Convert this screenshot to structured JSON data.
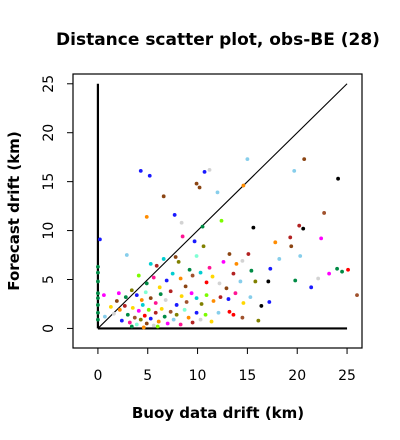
{
  "chart_data": {
    "type": "scatter",
    "title": "Distance scatter plot, obs-BE (28)",
    "xlabel": "Buoy data drift (km)",
    "ylabel": "Forecast drift (km)",
    "xlim": [
      -2.5,
      26.5
    ],
    "ylim": [
      -2,
      26
    ],
    "xticks": [
      0,
      5,
      10,
      15,
      20,
      25
    ],
    "yticks": [
      0,
      5,
      10,
      15,
      20,
      25
    ],
    "grid": false,
    "reference_lines": [
      {
        "type": "identity",
        "from": [
          0,
          0
        ],
        "to": [
          25,
          25
        ],
        "color": "#000000"
      },
      {
        "type": "vertical",
        "from": [
          0,
          0
        ],
        "to": [
          0,
          25
        ],
        "color": "#000000"
      },
      {
        "type": "horizontal",
        "from": [
          0,
          0
        ],
        "to": [
          25,
          0
        ],
        "color": "#000000"
      }
    ],
    "points": [
      {
        "x": 4.3,
        "y": 16.1,
        "color": "#1a1aff"
      },
      {
        "x": 5.2,
        "y": 15.6,
        "color": "#1a1aff"
      },
      {
        "x": 6.6,
        "y": 13.5,
        "color": "#8b4513"
      },
      {
        "x": 9.9,
        "y": 14.8,
        "color": "#8b4513"
      },
      {
        "x": 10.2,
        "y": 14.4,
        "color": "#8b4513"
      },
      {
        "x": 10.7,
        "y": 16.0,
        "color": "#1a1aff"
      },
      {
        "x": 11.2,
        "y": 16.2,
        "color": "#d3d3d3"
      },
      {
        "x": 14.6,
        "y": 14.6,
        "color": "#ff8c00"
      },
      {
        "x": 15.0,
        "y": 17.3,
        "color": "#87ceeb"
      },
      {
        "x": 19.7,
        "y": 16.1,
        "color": "#87ceeb"
      },
      {
        "x": 20.7,
        "y": 17.3,
        "color": "#8b4513"
      },
      {
        "x": 24.1,
        "y": 15.3,
        "color": "#000000"
      },
      {
        "x": 12.0,
        "y": 13.9,
        "color": "#87ceeb"
      },
      {
        "x": 4.9,
        "y": 11.4,
        "color": "#ff8c00"
      },
      {
        "x": 7.7,
        "y": 11.6,
        "color": "#1a1aff"
      },
      {
        "x": 8.4,
        "y": 10.8,
        "color": "#d3d3d3"
      },
      {
        "x": 10.5,
        "y": 10.4,
        "color": "#008b45"
      },
      {
        "x": 12.4,
        "y": 11.0,
        "color": "#7cfc00"
      },
      {
        "x": 15.6,
        "y": 10.3,
        "color": "#000000"
      },
      {
        "x": 20.2,
        "y": 10.5,
        "color": "#b22222"
      },
      {
        "x": 20.6,
        "y": 10.2,
        "color": "#000000"
      },
      {
        "x": 22.7,
        "y": 11.8,
        "color": "#a0522d"
      },
      {
        "x": 0.2,
        "y": 9.1,
        "color": "#1a1aff"
      },
      {
        "x": 8.5,
        "y": 9.4,
        "color": "#ff1493"
      },
      {
        "x": 9.7,
        "y": 8.9,
        "color": "#1a1aff"
      },
      {
        "x": 10.6,
        "y": 8.4,
        "color": "#808000"
      },
      {
        "x": 17.8,
        "y": 8.8,
        "color": "#ff8c00"
      },
      {
        "x": 19.3,
        "y": 9.3,
        "color": "#b22222"
      },
      {
        "x": 22.4,
        "y": 9.2,
        "color": "#ff00ff"
      },
      {
        "x": 2.9,
        "y": 7.5,
        "color": "#87ceeb"
      },
      {
        "x": 5.3,
        "y": 6.6,
        "color": "#00ced1"
      },
      {
        "x": 5.9,
        "y": 6.4,
        "color": "#b22222"
      },
      {
        "x": 6.6,
        "y": 7.1,
        "color": "#00ced1"
      },
      {
        "x": 7.8,
        "y": 7.3,
        "color": "#8b4513"
      },
      {
        "x": 8.1,
        "y": 6.8,
        "color": "#808000"
      },
      {
        "x": 9.2,
        "y": 6.0,
        "color": "#008b45"
      },
      {
        "x": 9.9,
        "y": 7.4,
        "color": "#7fffd4"
      },
      {
        "x": 11.2,
        "y": 6.2,
        "color": "#ff1493"
      },
      {
        "x": 12.6,
        "y": 6.8,
        "color": "#ff00ff"
      },
      {
        "x": 13.2,
        "y": 7.6,
        "color": "#8b4513"
      },
      {
        "x": 13.9,
        "y": 6.6,
        "color": "#ff8c00"
      },
      {
        "x": 14.5,
        "y": 6.9,
        "color": "#d3d3d3"
      },
      {
        "x": 15.1,
        "y": 7.6,
        "color": "#b22222"
      },
      {
        "x": 15.4,
        "y": 5.9,
        "color": "#008b45"
      },
      {
        "x": 17.3,
        "y": 6.1,
        "color": "#1a1aff"
      },
      {
        "x": 18.2,
        "y": 7.1,
        "color": "#87ceeb"
      },
      {
        "x": 19.4,
        "y": 8.4,
        "color": "#8b4513"
      },
      {
        "x": 20.3,
        "y": 7.4,
        "color": "#87ceeb"
      },
      {
        "x": 22.1,
        "y": 5.1,
        "color": "#d3d3d3"
      },
      {
        "x": 23.2,
        "y": 5.6,
        "color": "#ff00ff"
      },
      {
        "x": 24.0,
        "y": 6.1,
        "color": "#008b45"
      },
      {
        "x": 24.5,
        "y": 5.8,
        "color": "#008b45"
      },
      {
        "x": 25.1,
        "y": 6.0,
        "color": "#ff0000"
      },
      {
        "x": 4.1,
        "y": 5.4,
        "color": "#7cfc00"
      },
      {
        "x": 4.9,
        "y": 4.6,
        "color": "#008b45"
      },
      {
        "x": 5.6,
        "y": 5.2,
        "color": "#ff1493"
      },
      {
        "x": 6.2,
        "y": 4.2,
        "color": "#ffd700"
      },
      {
        "x": 6.9,
        "y": 4.9,
        "color": "#1a1aff"
      },
      {
        "x": 7.5,
        "y": 5.6,
        "color": "#00ced1"
      },
      {
        "x": 8.3,
        "y": 5.1,
        "color": "#ff8c00"
      },
      {
        "x": 8.8,
        "y": 4.3,
        "color": "#8b4513"
      },
      {
        "x": 9.5,
        "y": 5.4,
        "color": "#a0522d"
      },
      {
        "x": 10.3,
        "y": 5.7,
        "color": "#00ced1"
      },
      {
        "x": 10.9,
        "y": 4.7,
        "color": "#ff0000"
      },
      {
        "x": 11.5,
        "y": 5.3,
        "color": "#ffd700"
      },
      {
        "x": 12.2,
        "y": 4.6,
        "color": "#d3d3d3"
      },
      {
        "x": 12.9,
        "y": 4.1,
        "color": "#8b4513"
      },
      {
        "x": 13.6,
        "y": 5.6,
        "color": "#b22222"
      },
      {
        "x": 14.3,
        "y": 4.8,
        "color": "#87ceeb"
      },
      {
        "x": 15.8,
        "y": 4.8,
        "color": "#808000"
      },
      {
        "x": 17.1,
        "y": 4.8,
        "color": "#000000"
      },
      {
        "x": 19.8,
        "y": 4.9,
        "color": "#008b45"
      },
      {
        "x": 21.4,
        "y": 4.2,
        "color": "#1a1aff"
      },
      {
        "x": 2.1,
        "y": 3.6,
        "color": "#ff00ff"
      },
      {
        "x": 2.8,
        "y": 3.2,
        "color": "#008b45"
      },
      {
        "x": 3.4,
        "y": 3.9,
        "color": "#808000"
      },
      {
        "x": 3.9,
        "y": 3.4,
        "color": "#1a1aff"
      },
      {
        "x": 4.4,
        "y": 2.9,
        "color": "#ff8c00"
      },
      {
        "x": 4.8,
        "y": 3.7,
        "color": "#7fffd4"
      },
      {
        "x": 5.3,
        "y": 3.1,
        "color": "#8b4513"
      },
      {
        "x": 5.8,
        "y": 2.6,
        "color": "#ff1493"
      },
      {
        "x": 6.3,
        "y": 3.5,
        "color": "#008b45"
      },
      {
        "x": 6.8,
        "y": 2.9,
        "color": "#d3d3d3"
      },
      {
        "x": 7.3,
        "y": 3.8,
        "color": "#b22222"
      },
      {
        "x": 7.9,
        "y": 2.4,
        "color": "#1a1aff"
      },
      {
        "x": 8.4,
        "y": 3.3,
        "color": "#ffd700"
      },
      {
        "x": 8.9,
        "y": 2.7,
        "color": "#a0522d"
      },
      {
        "x": 9.4,
        "y": 3.6,
        "color": "#ff00ff"
      },
      {
        "x": 9.9,
        "y": 3.1,
        "color": "#00ced1"
      },
      {
        "x": 10.4,
        "y": 2.5,
        "color": "#808000"
      },
      {
        "x": 10.9,
        "y": 3.4,
        "color": "#7cfc00"
      },
      {
        "x": 11.6,
        "y": 2.8,
        "color": "#ff8c00"
      },
      {
        "x": 12.3,
        "y": 3.2,
        "color": "#b22222"
      },
      {
        "x": 13.1,
        "y": 3.0,
        "color": "#1a1aff"
      },
      {
        "x": 13.8,
        "y": 3.6,
        "color": "#ff1493"
      },
      {
        "x": 14.6,
        "y": 2.6,
        "color": "#ffd700"
      },
      {
        "x": 15.3,
        "y": 3.2,
        "color": "#87ceeb"
      },
      {
        "x": 16.4,
        "y": 2.3,
        "color": "#000000"
      },
      {
        "x": 17.2,
        "y": 2.7,
        "color": "#1a1aff"
      },
      {
        "x": 26.0,
        "y": 3.4,
        "color": "#a0522d"
      },
      {
        "x": 0.0,
        "y": 6.3,
        "color": "#008b45"
      },
      {
        "x": 0.0,
        "y": 5.7,
        "color": "#008b45"
      },
      {
        "x": 0.0,
        "y": 4.8,
        "color": "#008b45"
      },
      {
        "x": 0.0,
        "y": 3.6,
        "color": "#008b45"
      },
      {
        "x": 0.0,
        "y": 3.1,
        "color": "#008b45"
      },
      {
        "x": 0.0,
        "y": 2.4,
        "color": "#008b45"
      },
      {
        "x": 0.0,
        "y": 1.6,
        "color": "#008b45"
      },
      {
        "x": 0.0,
        "y": 0.9,
        "color": "#008b45"
      },
      {
        "x": 0.6,
        "y": 3.4,
        "color": "#ff00ff"
      },
      {
        "x": 0.7,
        "y": 1.2,
        "color": "#87ceeb"
      },
      {
        "x": 1.3,
        "y": 2.2,
        "color": "#ffd700"
      },
      {
        "x": 1.6,
        "y": 1.5,
        "color": "#d3d3d3"
      },
      {
        "x": 1.9,
        "y": 2.8,
        "color": "#8b4513"
      },
      {
        "x": 2.2,
        "y": 1.9,
        "color": "#ff8c00"
      },
      {
        "x": 2.4,
        "y": 0.8,
        "color": "#1a1aff"
      },
      {
        "x": 2.7,
        "y": 2.3,
        "color": "#b22222"
      },
      {
        "x": 3.0,
        "y": 1.4,
        "color": "#008b45"
      },
      {
        "x": 3.2,
        "y": 0.6,
        "color": "#ff1493"
      },
      {
        "x": 3.5,
        "y": 2.1,
        "color": "#ffd700"
      },
      {
        "x": 3.7,
        "y": 1.1,
        "color": "#a0522d"
      },
      {
        "x": 3.9,
        "y": 0.4,
        "color": "#7fffd4"
      },
      {
        "x": 4.1,
        "y": 1.8,
        "color": "#ff00ff"
      },
      {
        "x": 4.3,
        "y": 0.9,
        "color": "#808000"
      },
      {
        "x": 4.5,
        "y": 2.4,
        "color": "#00ced1"
      },
      {
        "x": 4.7,
        "y": 1.3,
        "color": "#ff0000"
      },
      {
        "x": 4.9,
        "y": 0.5,
        "color": "#8b4513"
      },
      {
        "x": 5.1,
        "y": 1.9,
        "color": "#7cfc00"
      },
      {
        "x": 5.3,
        "y": 1.0,
        "color": "#1a1aff"
      },
      {
        "x": 5.6,
        "y": 0.3,
        "color": "#d3d3d3"
      },
      {
        "x": 5.8,
        "y": 1.6,
        "color": "#b22222"
      },
      {
        "x": 6.1,
        "y": 0.7,
        "color": "#ff8c00"
      },
      {
        "x": 6.4,
        "y": 2.0,
        "color": "#ffd700"
      },
      {
        "x": 6.7,
        "y": 1.2,
        "color": "#008b45"
      },
      {
        "x": 7.0,
        "y": 0.5,
        "color": "#ff00ff"
      },
      {
        "x": 7.3,
        "y": 1.7,
        "color": "#a0522d"
      },
      {
        "x": 7.6,
        "y": 0.9,
        "color": "#87ceeb"
      },
      {
        "x": 7.9,
        "y": 1.4,
        "color": "#808000"
      },
      {
        "x": 8.3,
        "y": 0.4,
        "color": "#ff1493"
      },
      {
        "x": 8.7,
        "y": 1.9,
        "color": "#7fffd4"
      },
      {
        "x": 9.1,
        "y": 1.1,
        "color": "#ff8c00"
      },
      {
        "x": 9.5,
        "y": 0.6,
        "color": "#b22222"
      },
      {
        "x": 9.9,
        "y": 1.6,
        "color": "#1a1aff"
      },
      {
        "x": 10.3,
        "y": 0.9,
        "color": "#d3d3d3"
      },
      {
        "x": 10.8,
        "y": 1.4,
        "color": "#7cfc00"
      },
      {
        "x": 11.4,
        "y": 0.7,
        "color": "#ffd700"
      },
      {
        "x": 12.1,
        "y": 1.6,
        "color": "#87ceeb"
      },
      {
        "x": 13.2,
        "y": 1.7,
        "color": "#ff0000"
      },
      {
        "x": 13.6,
        "y": 1.4,
        "color": "#ff0000"
      },
      {
        "x": 14.5,
        "y": 1.1,
        "color": "#a0522d"
      },
      {
        "x": 16.1,
        "y": 0.8,
        "color": "#808000"
      },
      {
        "x": 3.4,
        "y": 0.2,
        "color": "#008b45"
      },
      {
        "x": 4.6,
        "y": 0.1,
        "color": "#ff8c00"
      },
      {
        "x": 6.0,
        "y": 0.2,
        "color": "#7cfc00"
      }
    ]
  }
}
